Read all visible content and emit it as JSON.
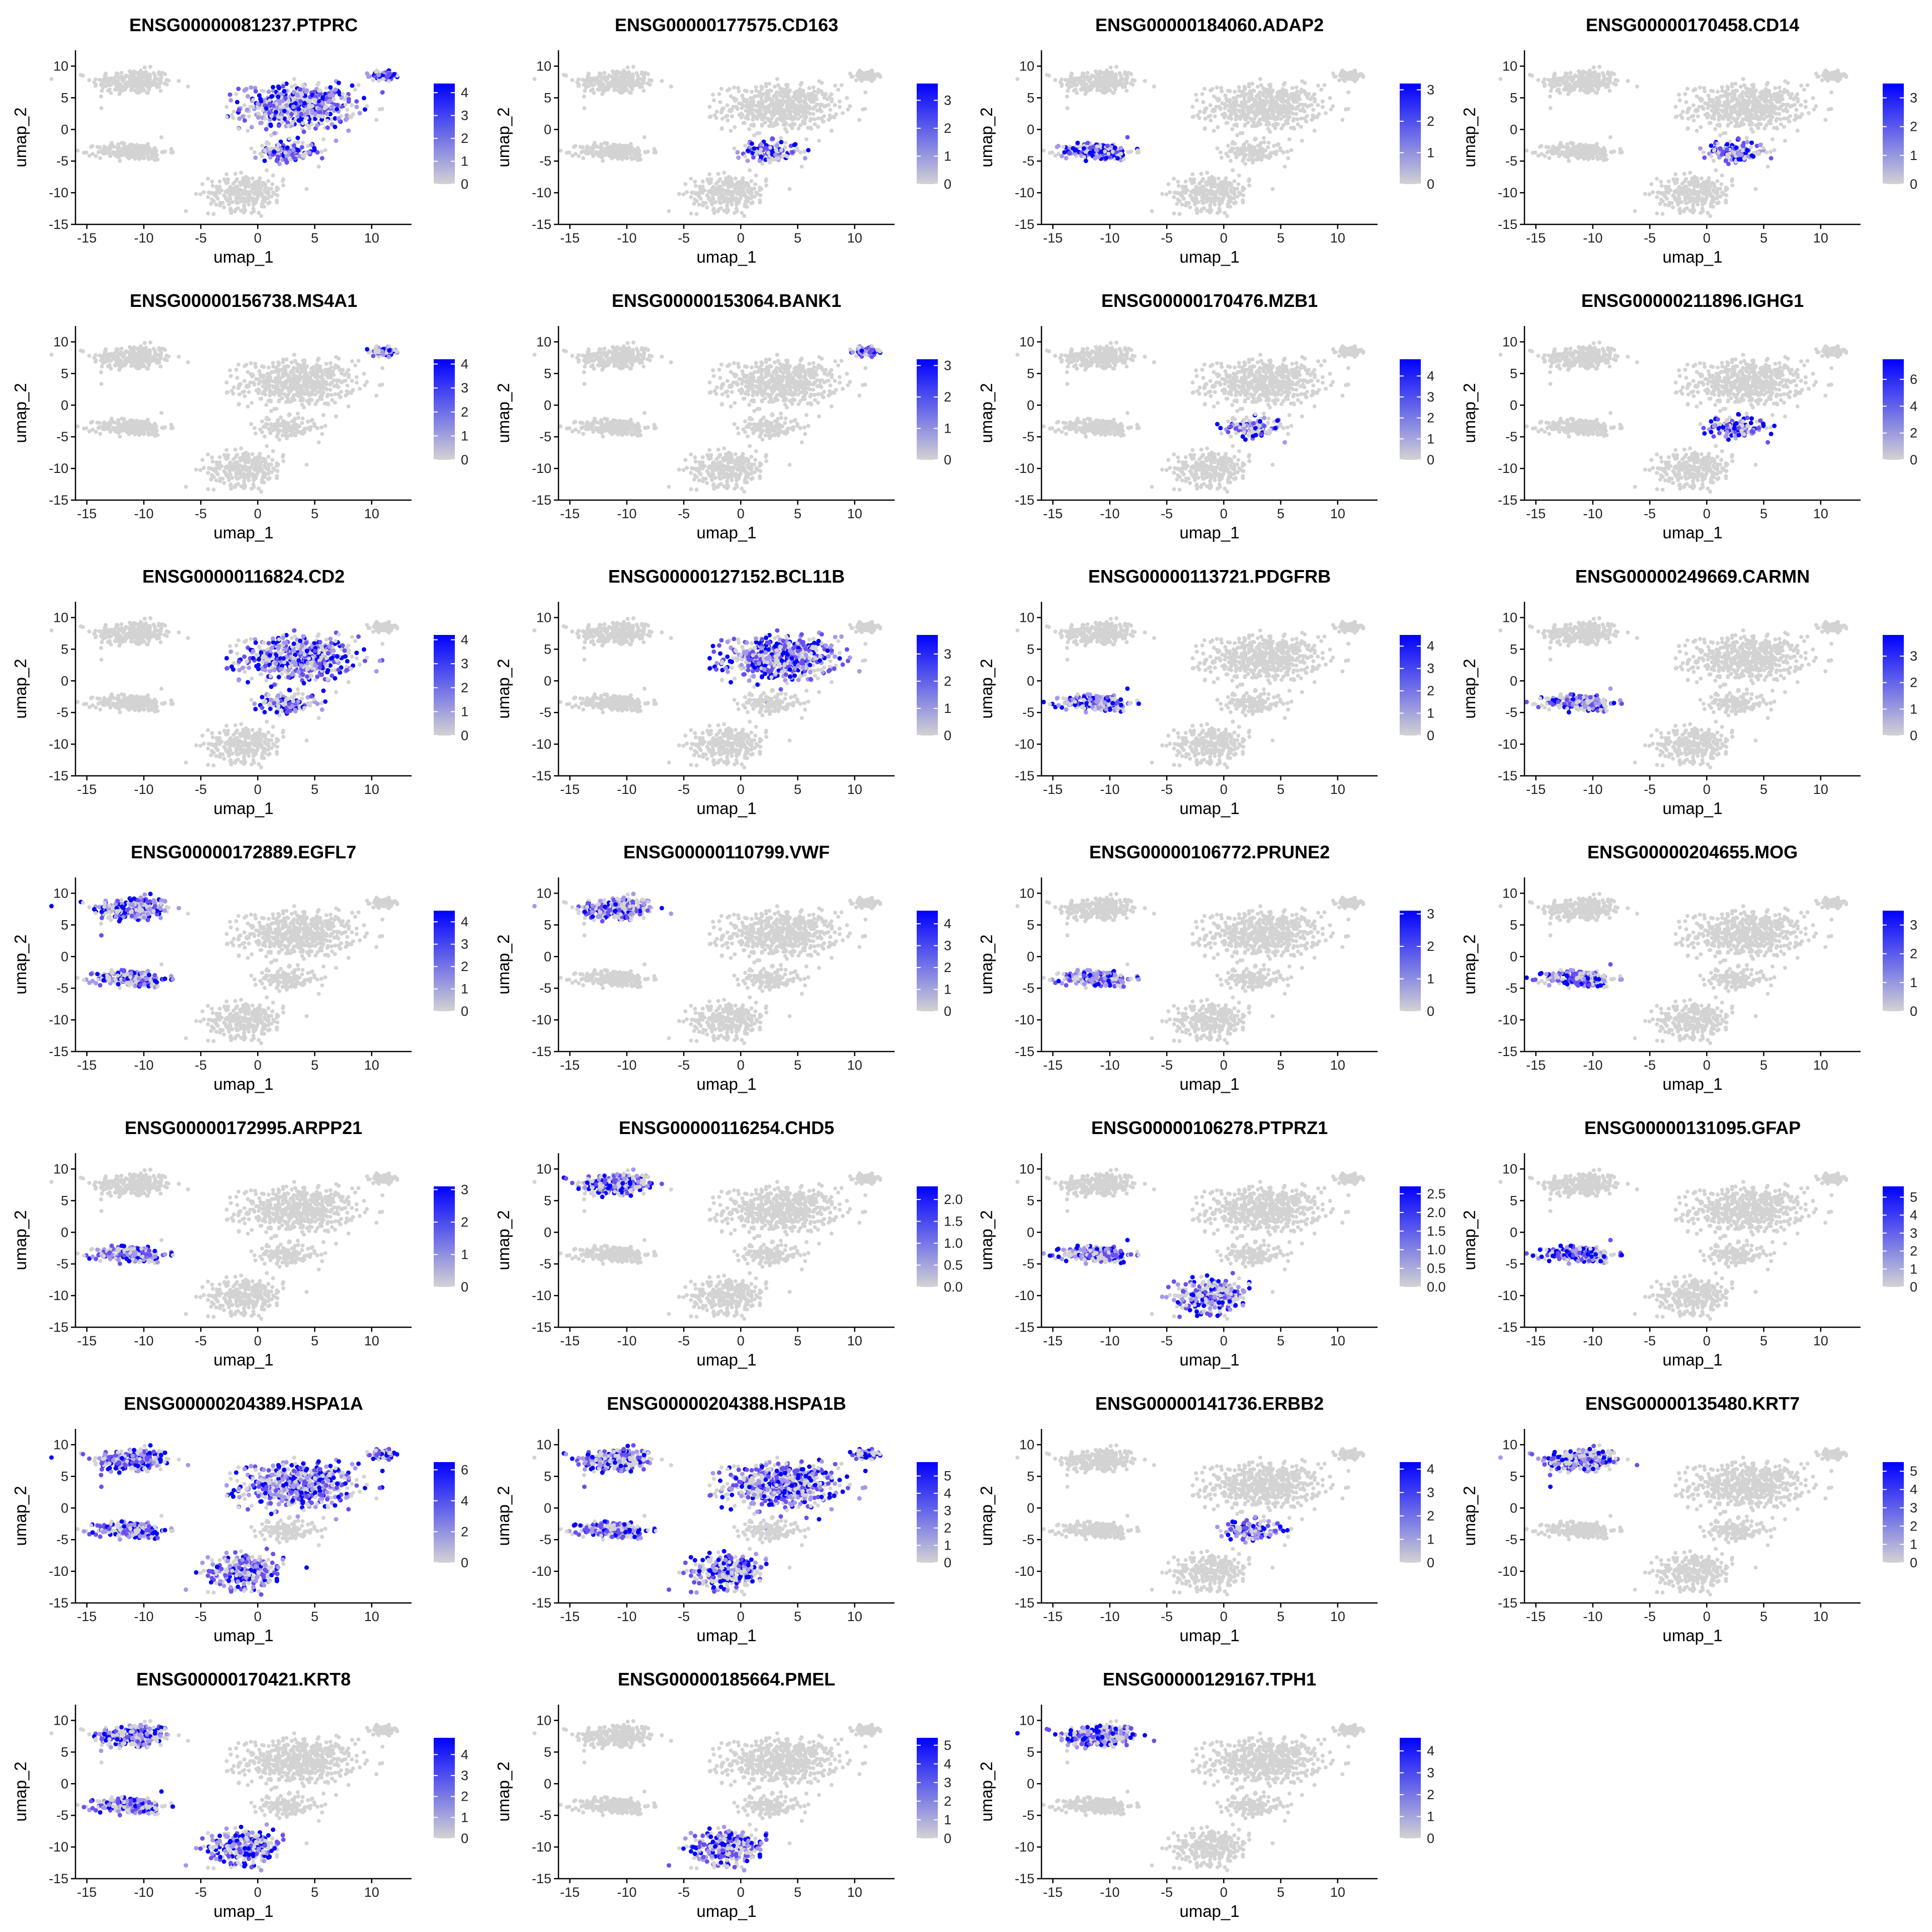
{
  "colors": {
    "low": "#d3d3d3",
    "high": "#0000ff",
    "background": "#ffffff"
  },
  "chart_data": {
    "type": "scatter",
    "x_axis": {
      "label": "umap_1",
      "range": [
        -16,
        13.5
      ],
      "ticks": [
        -15,
        -10,
        -5,
        0,
        5,
        10
      ]
    },
    "y_axis": {
      "label": "umap_2",
      "range": [
        -15,
        12.5
      ],
      "ticks": [
        -15,
        -10,
        -5,
        0,
        5,
        10
      ]
    },
    "grid": false,
    "legend_placement": "right",
    "clusters": [
      {
        "id": "upper_left",
        "center": [
          -11.0,
          7.5
        ],
        "spread": [
          3.2,
          1.8
        ]
      },
      {
        "id": "central",
        "center": [
          3.5,
          3.5
        ],
        "spread": [
          4.5,
          3.2
        ]
      },
      {
        "id": "upper_right",
        "center": [
          11.0,
          8.5
        ],
        "spread": [
          1.0,
          0.6
        ]
      },
      {
        "id": "left_mid",
        "center": [
          -11.0,
          -3.5
        ],
        "spread": [
          2.8,
          1.2
        ]
      },
      {
        "id": "bottom",
        "center": [
          -1.0,
          -10.0
        ],
        "spread": [
          3.0,
          2.5
        ]
      },
      {
        "id": "central_tails",
        "center": [
          2.5,
          -3.5
        ],
        "spread": [
          2.5,
          1.5
        ]
      }
    ],
    "panels": [
      {
        "title": "ENSG00000081237.PTPRC",
        "legend_ticks": [
          "4",
          "3",
          "2",
          "1",
          "0"
        ],
        "max": 4.4,
        "expressing_clusters": [
          "central",
          "upper_right",
          "central_tails"
        ]
      },
      {
        "title": "ENSG00000177575.CD163",
        "legend_ticks": [
          "3",
          "2",
          "1",
          "0"
        ],
        "max": 3.6,
        "expressing_clusters": [
          "central_tails"
        ]
      },
      {
        "title": "ENSG00000184060.ADAP2",
        "legend_ticks": [
          "3",
          "2",
          "1",
          "0"
        ],
        "max": 3.2,
        "expressing_clusters": [
          "left_mid"
        ]
      },
      {
        "title": "ENSG00000170458.CD14",
        "legend_ticks": [
          "3",
          "2",
          "1",
          "0"
        ],
        "max": 3.5,
        "expressing_clusters": [
          "central_tails"
        ]
      },
      {
        "title": "ENSG00000156738.MS4A1",
        "legend_ticks": [
          "4",
          "3",
          "2",
          "1",
          "0"
        ],
        "max": 4.2,
        "expressing_clusters": [
          "upper_right"
        ]
      },
      {
        "title": "ENSG00000153064.BANK1",
        "legend_ticks": [
          "3",
          "2",
          "1",
          "0"
        ],
        "max": 3.2,
        "expressing_clusters": [
          "upper_right"
        ]
      },
      {
        "title": "ENSG00000170476.MZB1",
        "legend_ticks": [
          "4",
          "3",
          "2",
          "1",
          "0"
        ],
        "max": 4.8,
        "expressing_clusters": [
          "central_tails"
        ]
      },
      {
        "title": "ENSG00000211896.IGHG1",
        "legend_ticks": [
          "6",
          "4",
          "2",
          "0"
        ],
        "max": 7.5,
        "expressing_clusters": [
          "central_tails"
        ]
      },
      {
        "title": "ENSG00000116824.CD2",
        "legend_ticks": [
          "4",
          "3",
          "2",
          "1",
          "0"
        ],
        "max": 4.2,
        "expressing_clusters": [
          "central",
          "central_tails"
        ]
      },
      {
        "title": "ENSG00000127152.BCL11B",
        "legend_ticks": [
          "3",
          "2",
          "1",
          "0"
        ],
        "max": 3.7,
        "expressing_clusters": [
          "central"
        ]
      },
      {
        "title": "ENSG00000113721.PDGFRB",
        "legend_ticks": [
          "4",
          "3",
          "2",
          "1",
          "0"
        ],
        "max": 4.5,
        "expressing_clusters": [
          "left_mid"
        ]
      },
      {
        "title": "ENSG00000249669.CARMN",
        "legend_ticks": [
          "3",
          "2",
          "1",
          "0"
        ],
        "max": 3.8,
        "expressing_clusters": [
          "left_mid"
        ]
      },
      {
        "title": "ENSG00000172889.EGFL7",
        "legend_ticks": [
          "4",
          "3",
          "2",
          "1",
          "0"
        ],
        "max": 4.5,
        "expressing_clusters": [
          "upper_left",
          "left_mid"
        ]
      },
      {
        "title": "ENSG00000110799.VWF",
        "legend_ticks": [
          "4",
          "3",
          "2",
          "1",
          "0"
        ],
        "max": 4.6,
        "expressing_clusters": [
          "upper_left"
        ]
      },
      {
        "title": "ENSG00000106772.PRUNE2",
        "legend_ticks": [
          "3",
          "2",
          "1",
          "0"
        ],
        "max": 3.1,
        "expressing_clusters": [
          "left_mid"
        ]
      },
      {
        "title": "ENSG00000204655.MOG",
        "legend_ticks": [
          "3",
          "2",
          "1",
          "0"
        ],
        "max": 3.5,
        "expressing_clusters": [
          "left_mid"
        ]
      },
      {
        "title": "ENSG00000172995.ARPP21",
        "legend_ticks": [
          "3",
          "2",
          "1",
          "0"
        ],
        "max": 3.1,
        "expressing_clusters": [
          "left_mid"
        ]
      },
      {
        "title": "ENSG00000116254.CHD5",
        "legend_ticks": [
          "2.0",
          "1.5",
          "1.0",
          "0.5",
          "0.0"
        ],
        "max": 2.3,
        "expressing_clusters": [
          "upper_left"
        ]
      },
      {
        "title": "ENSG00000106278.PTPRZ1",
        "legend_ticks": [
          "2.5",
          "2.0",
          "1.5",
          "1.0",
          "0.5",
          "0.0"
        ],
        "max": 2.7,
        "expressing_clusters": [
          "left_mid",
          "bottom"
        ]
      },
      {
        "title": "ENSG00000131095.GFAP",
        "legend_ticks": [
          "5",
          "4",
          "3",
          "2",
          "1",
          "0"
        ],
        "max": 5.6,
        "expressing_clusters": [
          "left_mid"
        ]
      },
      {
        "title": "ENSG00000204389.HSPA1A",
        "legend_ticks": [
          "6",
          "4",
          "2",
          "0"
        ],
        "max": 6.5,
        "expressing_clusters": [
          "upper_left",
          "central",
          "left_mid",
          "bottom",
          "upper_right"
        ]
      },
      {
        "title": "ENSG00000204388.HSPA1B",
        "legend_ticks": [
          "5",
          "4",
          "3",
          "2",
          "1",
          "0"
        ],
        "max": 5.8,
        "expressing_clusters": [
          "upper_left",
          "central",
          "left_mid",
          "bottom",
          "upper_right"
        ]
      },
      {
        "title": "ENSG00000141736.ERBB2",
        "legend_ticks": [
          "4",
          "3",
          "2",
          "1",
          "0"
        ],
        "max": 4.3,
        "expressing_clusters": [
          "central_tails"
        ]
      },
      {
        "title": "ENSG00000135480.KRT7",
        "legend_ticks": [
          "5",
          "4",
          "3",
          "2",
          "1",
          "0"
        ],
        "max": 5.5,
        "expressing_clusters": [
          "upper_left"
        ]
      },
      {
        "title": "ENSG00000170421.KRT8",
        "legend_ticks": [
          "4",
          "3",
          "2",
          "1",
          "0"
        ],
        "max": 4.8,
        "expressing_clusters": [
          "upper_left",
          "bottom",
          "left_mid"
        ]
      },
      {
        "title": "ENSG00000185664.PMEL",
        "legend_ticks": [
          "5",
          "4",
          "3",
          "2",
          "1",
          "0"
        ],
        "max": 5.4,
        "expressing_clusters": [
          "bottom"
        ]
      },
      {
        "title": "ENSG00000129167.TPH1",
        "legend_ticks": [
          "4",
          "3",
          "2",
          "1",
          "0"
        ],
        "max": 4.6,
        "expressing_clusters": [
          "upper_left"
        ]
      }
    ]
  }
}
